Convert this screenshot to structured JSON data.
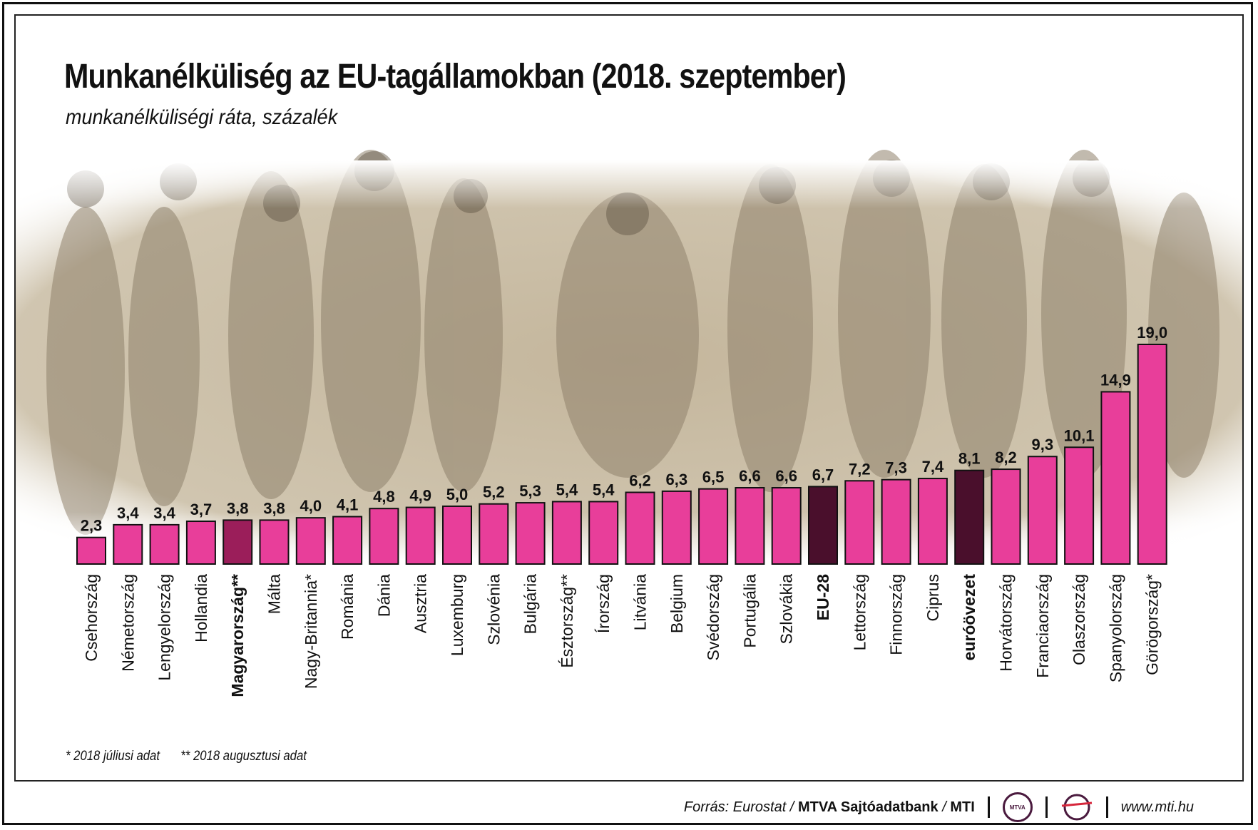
{
  "header": {
    "title": "Munkanélküliség az EU-tagállamokban (2018. szeptember)",
    "subtitle": "munkanélküliségi ráta, százalék"
  },
  "footnotes": [
    "* 2018 júliusi adat",
    "** 2018 augusztusi adat"
  ],
  "source": {
    "prefix": "Forrás: Eurostat / ",
    "agency": "MTVA Sajtóadatbank",
    "mid": " / ",
    "mti": "MTI",
    "logo1": "MTVA",
    "url": "www.mti.hu"
  },
  "colors": {
    "bar_default": "#e83e9a",
    "bar_hungary": "#9b1e5a",
    "bar_aggregate": "#4a0f2c",
    "photo_tint": "#c9bca3"
  },
  "background_image": "crowd-of-people-photo",
  "chart_data": {
    "type": "bar",
    "title": "Munkanélküliség az EU-tagállamokban (2018. szeptember)",
    "subtitle": "munkanélküliségi ráta, százalék",
    "xlabel": "",
    "ylabel": "",
    "ylim": [
      0,
      19.0
    ],
    "grid": false,
    "categories": [
      "Csehország",
      "Németország",
      "Lengyelország",
      "Hollandia",
      "Magyarország**",
      "Málta",
      "Nagy-Britannia*",
      "Románia",
      "Dánia",
      "Ausztria",
      "Luxemburg",
      "Szlovénia",
      "Bulgária",
      "Észtország**",
      "Írország",
      "Litvánia",
      "Belgium",
      "Svédország",
      "Portugália",
      "Szlovákia",
      "EU-28",
      "Lettország",
      "Finnország",
      "Ciprus",
      "euróövezet",
      "Horvátország",
      "Franciaország",
      "Olaszország",
      "Spanyolország",
      "Görögország*"
    ],
    "values": [
      2.3,
      3.4,
      3.4,
      3.7,
      3.8,
      3.8,
      4.0,
      4.1,
      4.8,
      4.9,
      5.0,
      5.2,
      5.3,
      5.4,
      5.4,
      6.2,
      6.3,
      6.5,
      6.6,
      6.6,
      6.7,
      7.2,
      7.3,
      7.4,
      8.1,
      8.2,
      9.3,
      10.1,
      14.9,
      19.0
    ],
    "value_labels": [
      "2,3",
      "3,4",
      "3,4",
      "3,7",
      "3,8",
      "3,8",
      "4,0",
      "4,1",
      "4,8",
      "4,9",
      "5,0",
      "5,2",
      "5,3",
      "5,4",
      "5,4",
      "6,2",
      "6,3",
      "6,5",
      "6,6",
      "6,6",
      "6,7",
      "7,2",
      "7,3",
      "7,4",
      "8,1",
      "8,2",
      "9,3",
      "10,1",
      "14,9",
      "19,0"
    ],
    "highlight": {
      "Magyarország**": "hungary",
      "EU-28": "aggregate",
      "euróövezet": "aggregate"
    }
  }
}
